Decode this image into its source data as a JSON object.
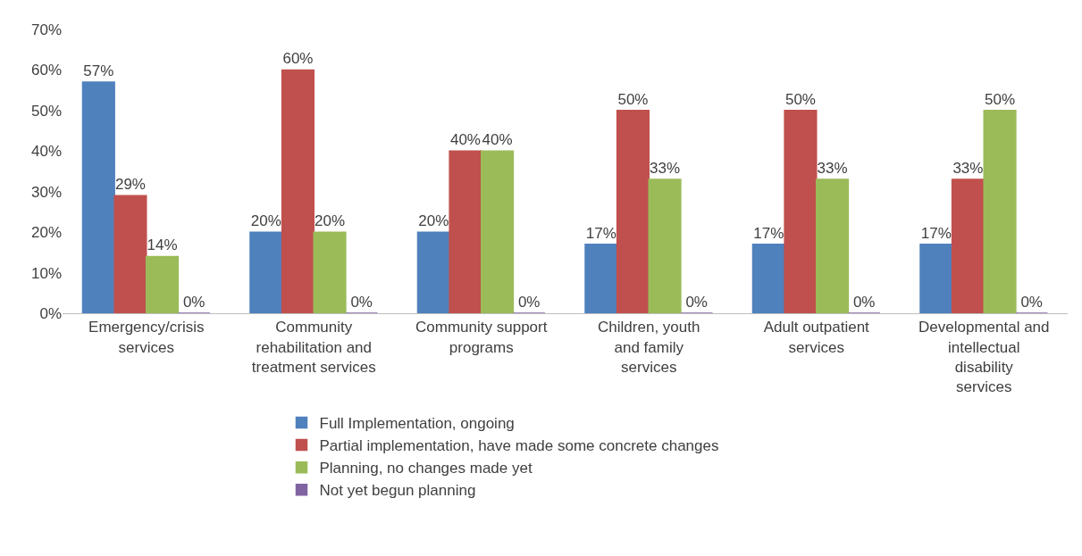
{
  "chart_data": {
    "type": "bar",
    "categories": [
      "Emergency/crisis services",
      "Community rehabilitation and treatment services",
      "Community support programs",
      "Children, youth and family services",
      "Adult outpatient services",
      "Developmental and intellectual disability services"
    ],
    "series": [
      {
        "name": "Full Implementation, ongoing",
        "color": "#4f81bd",
        "values": [
          57,
          20,
          20,
          17,
          17,
          17
        ],
        "value_labels": [
          "57%",
          "20%",
          "20%",
          "17%",
          "17%",
          "17%"
        ]
      },
      {
        "name": "Partial implementation, have made some concrete changes",
        "color": "#c0504d",
        "values": [
          29,
          60,
          40,
          50,
          50,
          33
        ],
        "value_labels": [
          "29%",
          "60%",
          "40%",
          "50%",
          "50%",
          "33%"
        ]
      },
      {
        "name": "Planning, no changes made yet",
        "color": "#9bbb59",
        "values": [
          14,
          20,
          40,
          33,
          33,
          50
        ],
        "value_labels": [
          "14%",
          "20%",
          "40%",
          "33%",
          "33%",
          "50%"
        ]
      },
      {
        "name": "Not yet begun planning",
        "color": "#8064a2",
        "values": [
          0,
          0,
          0,
          0,
          0,
          0
        ],
        "value_labels": [
          "0%",
          "0%",
          "0%",
          "0%",
          "0%",
          "0%"
        ]
      }
    ],
    "ylim": [
      0,
      70
    ],
    "yticks": [
      {
        "value": 0,
        "label": "0%"
      },
      {
        "value": 10,
        "label": "10%"
      },
      {
        "value": 20,
        "label": "20%"
      },
      {
        "value": 30,
        "label": "30%"
      },
      {
        "value": 40,
        "label": "40%"
      },
      {
        "value": 50,
        "label": "50%"
      },
      {
        "value": 60,
        "label": "60%"
      },
      {
        "value": 70,
        "label": "70%"
      }
    ],
    "grid": false,
    "legend": "bottom"
  }
}
